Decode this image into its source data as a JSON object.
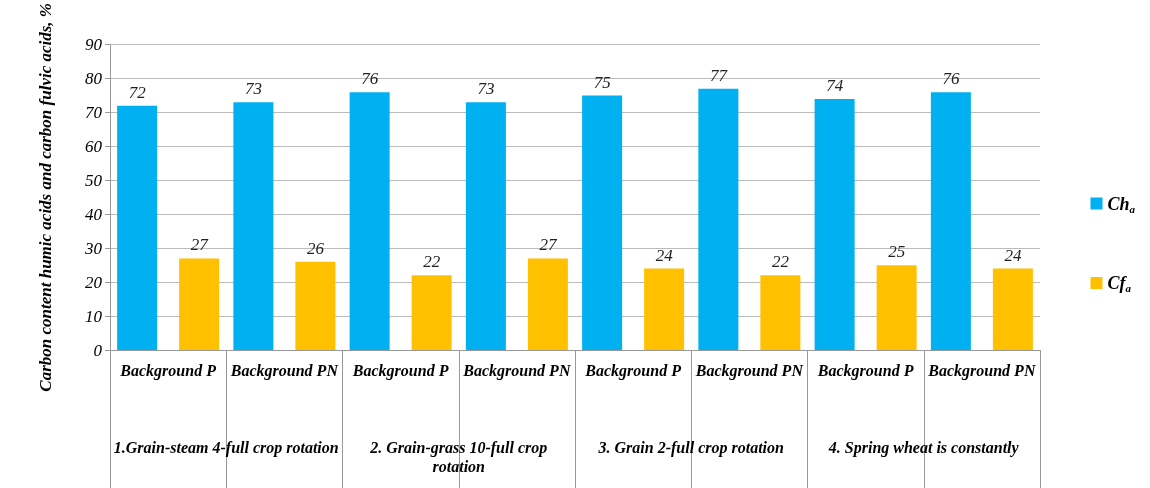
{
  "chart_data": {
    "type": "bar",
    "categories": [
      "Background P",
      "Background PN",
      "Background P",
      "Background PN",
      "Background P",
      "Background PN",
      "Background P",
      "Background PN"
    ],
    "series": [
      {
        "name": "Ch$_{a}$",
        "color": "#00b0f0",
        "values": [
          72,
          73,
          76,
          73,
          75,
          77,
          74,
          76
        ]
      },
      {
        "name": "Cf$_{a}$",
        "color": "#ffc000",
        "values": [
          27,
          26,
          22,
          27,
          24,
          22,
          25,
          24
        ]
      }
    ],
    "annotations": [
      "1.Grain-steam 4-full crop rotation",
      "2. Grain-grass 10-full crop rotation",
      "3. Grain 2-full crop rotation",
      "4. Spring  wheat is constantly"
    ],
    "ylabel": "Carbon content humic acids and carbon fulvic acids, %",
    "ylim": [
      0,
      90
    ],
    "yticks": [
      0,
      10,
      20,
      30,
      40,
      50,
      60,
      70,
      80,
      90
    ],
    "grid": "y",
    "legend": "right",
    "data_labels": true
  }
}
